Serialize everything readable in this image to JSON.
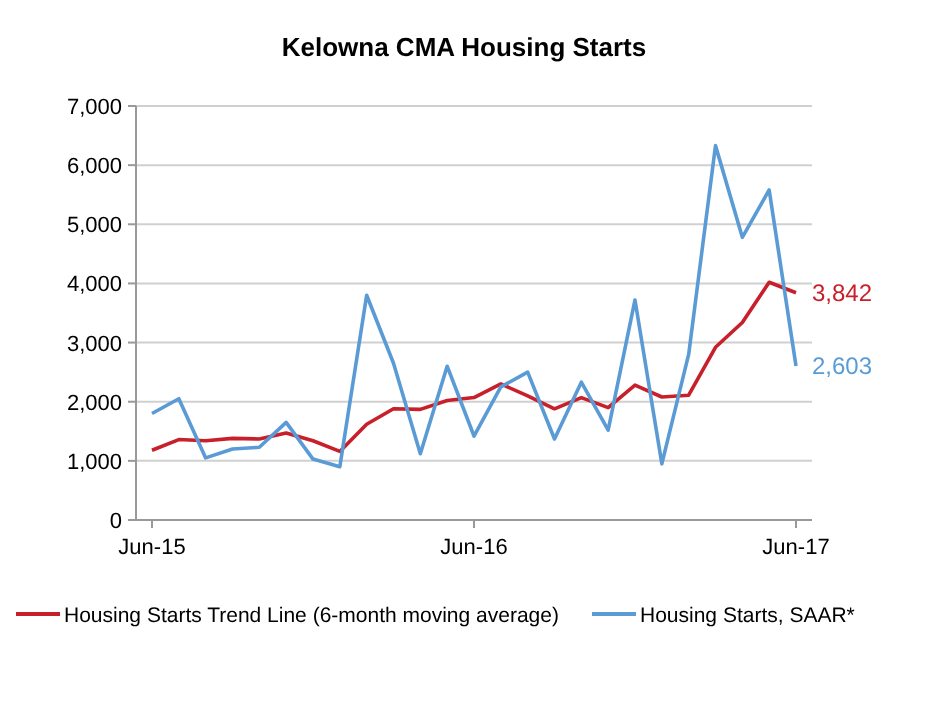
{
  "chart_data": {
    "type": "line",
    "title": "Kelowna CMA Housing Starts",
    "categories": [
      "Jun-15",
      null,
      null,
      null,
      null,
      null,
      null,
      null,
      null,
      null,
      null,
      null,
      "Jun-16",
      null,
      null,
      null,
      null,
      null,
      null,
      null,
      null,
      null,
      null,
      null,
      "Jun-17"
    ],
    "series": [
      {
        "name": "Housing Starts Trend Line (6-month moving average)",
        "color": "#c8202a",
        "values": [
          1180,
          1360,
          1340,
          1380,
          1370,
          1470,
          1340,
          1160,
          1620,
          1880,
          1870,
          2020,
          2070,
          2300,
          2100,
          1880,
          2070,
          1900,
          2280,
          2080,
          2110,
          2920,
          3340,
          4020,
          3842
        ],
        "value_labels": [
          null,
          null,
          null,
          null,
          null,
          null,
          null,
          null,
          null,
          null,
          null,
          null,
          null,
          null,
          null,
          null,
          null,
          null,
          null,
          null,
          null,
          null,
          null,
          null,
          "3,842"
        ]
      },
      {
        "name": "Housing Starts, SAAR*",
        "color": "#5b9bd5",
        "values": [
          1800,
          2050,
          1050,
          1200,
          1230,
          1650,
          1030,
          900,
          3800,
          2650,
          1120,
          2600,
          1420,
          2250,
          2500,
          1370,
          2330,
          1520,
          3720,
          950,
          2800,
          6330,
          4780,
          5580,
          2603
        ],
        "value_labels": [
          null,
          null,
          null,
          null,
          null,
          null,
          null,
          null,
          null,
          null,
          null,
          null,
          null,
          null,
          null,
          null,
          null,
          null,
          null,
          null,
          null,
          null,
          null,
          null,
          "2,603"
        ]
      }
    ],
    "ylim": [
      0,
      7000
    ],
    "yticks": [
      {
        "value": 0,
        "label": "0"
      },
      {
        "value": 1000,
        "label": "1,000"
      },
      {
        "value": 2000,
        "label": "2,000"
      },
      {
        "value": 3000,
        "label": "3,000"
      },
      {
        "value": 4000,
        "label": "4,000"
      },
      {
        "value": 5000,
        "label": "5,000"
      },
      {
        "value": 6000,
        "label": "6,000"
      },
      {
        "value": 7000,
        "label": "7,000"
      }
    ],
    "grid": "y",
    "legend": "bottom",
    "marker": "none",
    "line_style": "solid"
  }
}
